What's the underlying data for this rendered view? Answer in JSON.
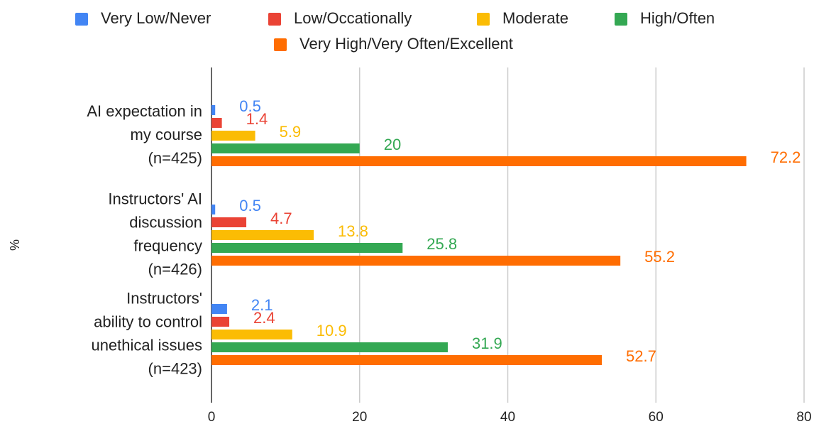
{
  "chart_data": {
    "type": "bar",
    "orientation": "horizontal",
    "y_axis_label": "%",
    "categories": [
      "AI expectation in\nmy course\n(n=425)",
      "Instructors' AI\ndiscussion\nfrequency\n(n=426)",
      "Instructors'\nability to control\nunethical issues\n(n=423)"
    ],
    "series": [
      {
        "name": "Very Low/Never",
        "color": "#4285f4",
        "values": [
          0.5,
          0.5,
          2.1
        ]
      },
      {
        "name": "Low/Occationally",
        "color": "#ea4335",
        "values": [
          1.4,
          4.7,
          2.4
        ]
      },
      {
        "name": "Moderate",
        "color": "#fbbc04",
        "values": [
          5.9,
          13.8,
          10.9
        ]
      },
      {
        "name": "High/Often",
        "color": "#34a853",
        "values": [
          20,
          25.8,
          31.9
        ]
      },
      {
        "name": "Very High/Very Often/Excellent",
        "color": "#ff6d01",
        "values": [
          72.2,
          55.2,
          52.7
        ]
      }
    ],
    "xlim": [
      0,
      80
    ],
    "xticks": [
      0,
      20,
      40,
      60,
      80
    ],
    "grid": true,
    "legend": "top"
  }
}
